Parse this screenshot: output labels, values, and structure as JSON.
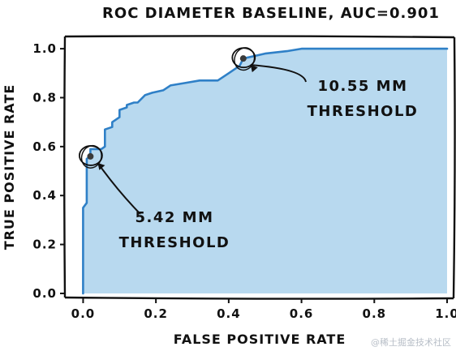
{
  "chart_data": {
    "type": "line",
    "title": "ROC DIAMETER BASELINE, AUC=0.901",
    "xlabel": "FALSE POSITIVE RATE",
    "ylabel": "TRUE POSITIVE RATE",
    "xlim": [
      -0.05,
      1.02
    ],
    "ylim": [
      -0.02,
      1.05
    ],
    "xticks": [
      "0.0",
      "0.2",
      "0.4",
      "0.6",
      "0.8",
      "1.0"
    ],
    "yticks": [
      "0.0",
      "0.2",
      "0.4",
      "0.6",
      "0.8",
      "1.0"
    ],
    "grid": false,
    "fill_under_curve": true,
    "line_color": "#2f80c7",
    "fill_color": "#b8d9ef",
    "series": [
      {
        "x": [
          0.0,
          0.0,
          0.01,
          0.01,
          0.02,
          0.02,
          0.05,
          0.06,
          0.06,
          0.08,
          0.08,
          0.1,
          0.1,
          0.12,
          0.12,
          0.14,
          0.15,
          0.17,
          0.19,
          0.22,
          0.24,
          0.28,
          0.32,
          0.37,
          0.38,
          0.4,
          0.43,
          0.44,
          0.5,
          0.56,
          0.6,
          0.7,
          0.8,
          0.9,
          1.0
        ],
        "y": [
          0.0,
          0.35,
          0.37,
          0.55,
          0.56,
          0.59,
          0.59,
          0.6,
          0.67,
          0.68,
          0.7,
          0.72,
          0.75,
          0.76,
          0.77,
          0.78,
          0.78,
          0.81,
          0.82,
          0.83,
          0.85,
          0.86,
          0.87,
          0.87,
          0.88,
          0.9,
          0.93,
          0.96,
          0.98,
          0.99,
          1.0,
          1.0,
          1.0,
          1.0,
          1.0
        ]
      }
    ],
    "annotations": [
      {
        "point": [
          0.02,
          0.56
        ],
        "text_lines": [
          "5.42 MM",
          "THRESHOLD"
        ]
      },
      {
        "point": [
          0.44,
          0.96
        ],
        "text_lines": [
          "10.55 MM",
          "THRESHOLD"
        ]
      }
    ]
  },
  "watermark": "@稀土掘金技术社区"
}
